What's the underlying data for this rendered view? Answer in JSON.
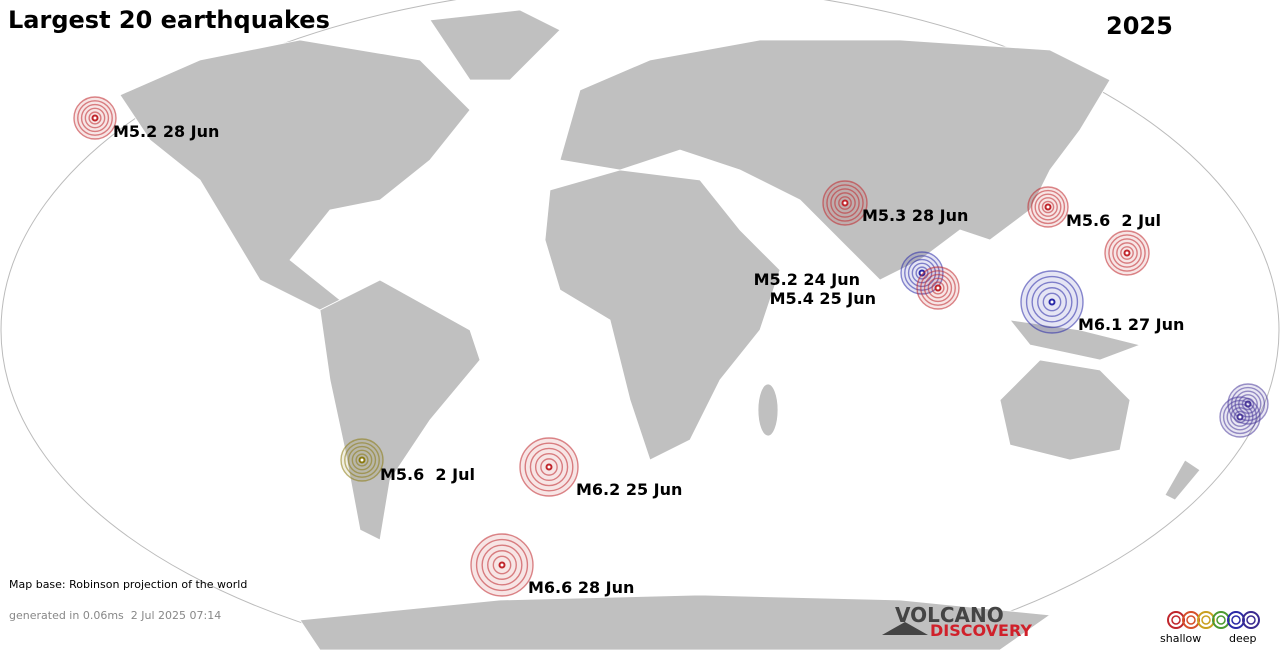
{
  "title": "Largest 20 earthquakes",
  "year": "2025",
  "quakes": [
    {
      "label": "M5.2 28 Jun"
    },
    {
      "label": "M5.3 28 Jun"
    },
    {
      "label": "M5.6  2 Jul"
    },
    {
      "label": "M5.2 24 Jun"
    },
    {
      "label": "M5.4 25 Jun"
    },
    {
      "label": "M6.1 27 Jun"
    },
    {
      "label": "M5.6  2 Jul"
    },
    {
      "label": "M6.2 25 Jun"
    },
    {
      "label": "M6.6 28 Jun"
    }
  ],
  "map_base": "Map base: Robinson projection of the world",
  "generated": "generated in 0.06ms  2 Jul 2025 07:14",
  "logo": {
    "top": "VOLCANO",
    "bottom": "DISCOVERY"
  },
  "legend": {
    "shallow": "shallow",
    "deep": "deep"
  }
}
